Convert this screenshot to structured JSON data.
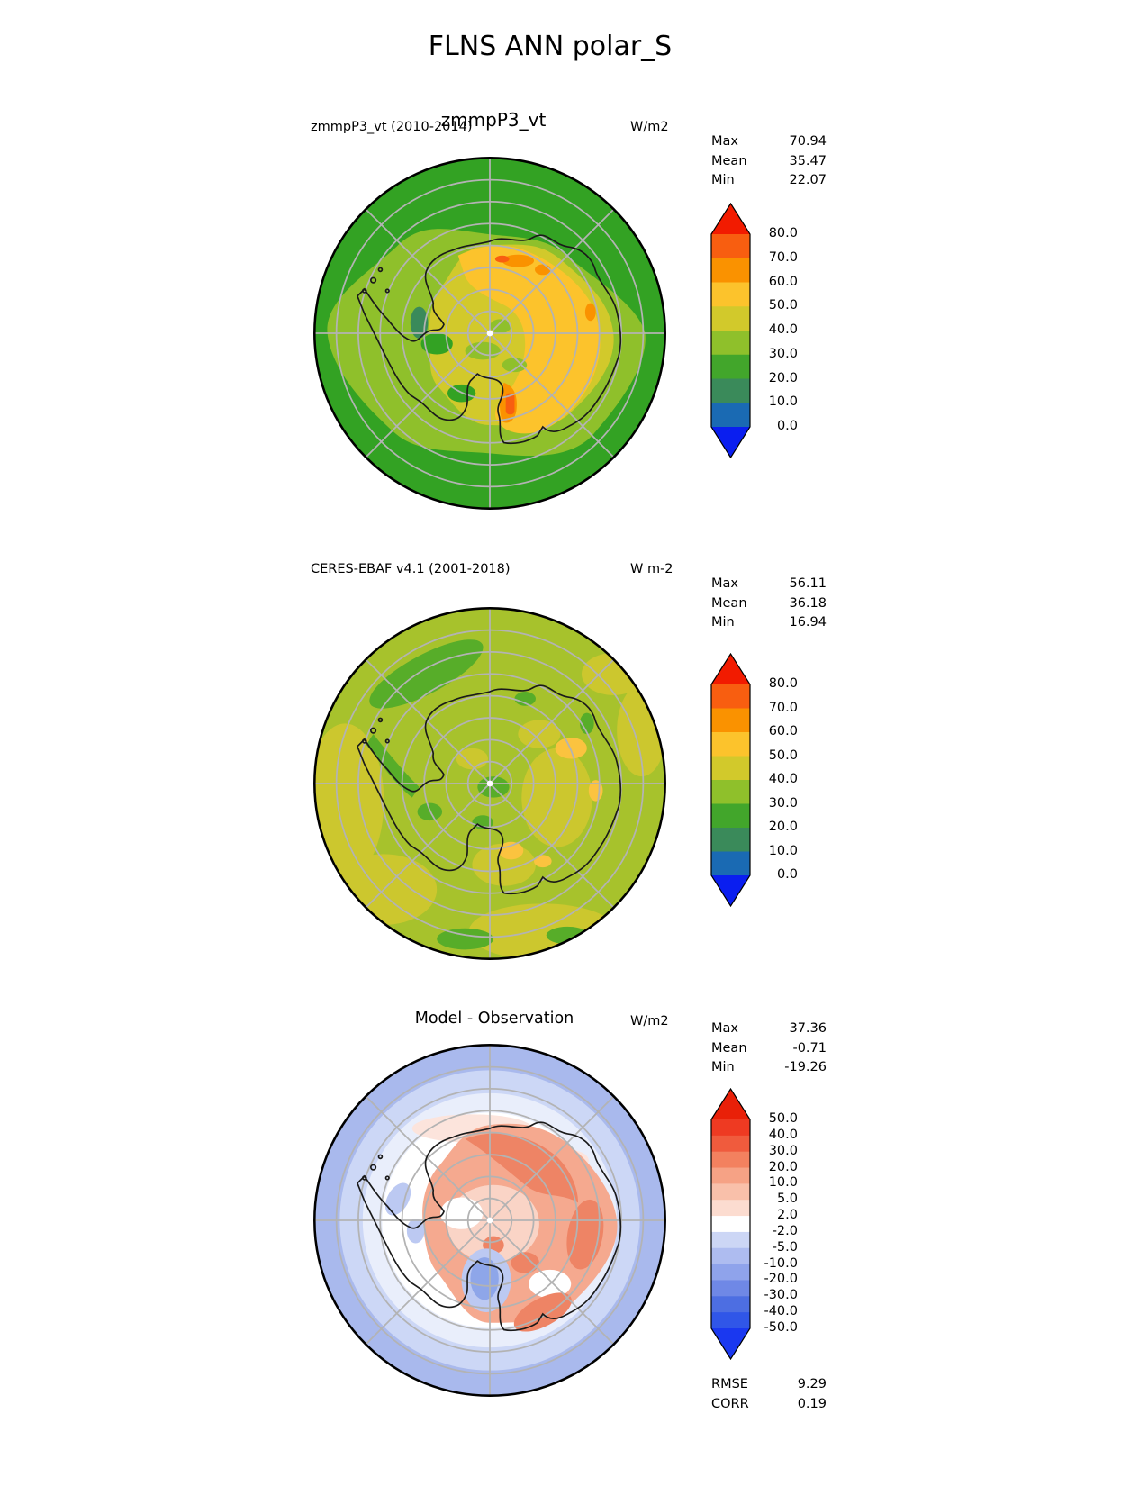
{
  "page_title": "FLNS ANN polar_S",
  "panels": [
    {
      "title_small": "zmmpP3_vt (2010-2014)",
      "title_large": "zmmpP3_vt",
      "units": "W/m2",
      "stats": [
        {
          "label": "Max",
          "value": "70.94"
        },
        {
          "label": "Mean",
          "value": "35.47"
        },
        {
          "label": "Min",
          "value": "22.07"
        }
      ],
      "colorbar": {
        "ticks": [
          "80.0",
          "70.0",
          "60.0",
          "50.0",
          "40.0",
          "30.0",
          "20.0",
          "10.0",
          "0.0"
        ],
        "segments_top_to_bottom": [
          "#f21b00",
          "#f85e10",
          "#fa9200",
          "#fcc32c",
          "#d2c92b",
          "#8fc02b",
          "#42a62b",
          "#3a8a5a",
          "#1a6ab3",
          "#0a1ef0"
        ]
      }
    },
    {
      "title_small": "CERES-EBAF v4.1 (2001-2018)",
      "title_large": "",
      "units": "W m-2",
      "stats": [
        {
          "label": "Max",
          "value": "56.11"
        },
        {
          "label": "Mean",
          "value": "36.18"
        },
        {
          "label": "Min",
          "value": "16.94"
        }
      ],
      "colorbar": {
        "ticks": [
          "80.0",
          "70.0",
          "60.0",
          "50.0",
          "40.0",
          "30.0",
          "20.0",
          "10.0",
          "0.0"
        ],
        "segments_top_to_bottom": [
          "#f21b00",
          "#f85e10",
          "#fa9200",
          "#fcc32c",
          "#d2c92b",
          "#8fc02b",
          "#42a62b",
          "#3a8a5a",
          "#1a6ab3",
          "#0a1ef0"
        ]
      }
    },
    {
      "title_small": "",
      "title_large": "Model - Observation",
      "units": "W/m2",
      "stats": [
        {
          "label": "Max",
          "value": "37.36"
        },
        {
          "label": "Mean",
          "value": "-0.71"
        },
        {
          "label": "Min",
          "value": "-19.26"
        }
      ],
      "colorbar": {
        "ticks": [
          "50.0",
          "40.0",
          "30.0",
          "20.0",
          "10.0",
          "5.0",
          "2.0",
          "-2.0",
          "-5.0",
          "-10.0",
          "-20.0",
          "-30.0",
          "-40.0",
          "-50.0"
        ],
        "segments_top_to_bottom": [
          "#e92008",
          "#ee3a22",
          "#f05b3d",
          "#f3815f",
          "#f6a285",
          "#f9c0aa",
          "#fcdcd0",
          "#ffffff",
          "#ccd6f5",
          "#aebcf0",
          "#8fa3eb",
          "#6f88e6",
          "#4d6ee2",
          "#3056e8",
          "#1a38f0"
        ]
      }
    }
  ],
  "footer": {
    "rows": [
      {
        "label": "RMSE",
        "value": "9.29"
      },
      {
        "label": "CORR",
        "value": "0.19"
      }
    ]
  },
  "palette": {
    "graticule": "#b3b3b3",
    "coast": "#1a1a1a",
    "p1": {
      "ocean": "#33a223",
      "ring": "#8fc02b",
      "olive": "#d2c92b",
      "amber": "#fcc32c",
      "orange": "#fa9200",
      "orange_red": "#f85e10",
      "teal": "#3a8a5a"
    },
    "p2": {
      "base": "#a7c22c",
      "olive": "#ccc72e",
      "green": "#57ad29",
      "amber": "#fbc33f"
    },
    "p3": {
      "ring1": "#a9b9ed",
      "ring2": "#ccd7f6",
      "ring3": "#e9eefb",
      "white": "#ffffff",
      "salmon": "#f5a98f",
      "pink_light": "#fad4c6",
      "pink_faint": "#fce4dc",
      "red": "#ee8465",
      "blue": "#8ea6e9",
      "blue_light": "#bcc9f2"
    }
  },
  "chart_data": [
    {
      "type": "heatmap",
      "subtype": "south_polar_stereographic_map",
      "variable": "FLNS",
      "season": "ANN",
      "region": "polar_S",
      "title": "zmmpP3_vt",
      "subtitle": "zmmpP3_vt (2010-2014)",
      "units": "W/m2",
      "stats": {
        "max": 70.94,
        "mean": 35.47,
        "min": 22.07
      },
      "colorbar_levels": [
        0,
        10,
        20,
        30,
        40,
        50,
        60,
        70,
        80
      ],
      "colorbar_colors_low_to_high": [
        "#0a1ef0",
        "#1a6ab3",
        "#3a8a5a",
        "#42a62b",
        "#8fc02b",
        "#d2c92b",
        "#fcc32c",
        "#fa9200",
        "#f85e10",
        "#f21b00"
      ],
      "extend": "both",
      "graticule": {
        "latitude_circles": 7,
        "meridian_spokes_deg": 45
      },
      "legend_position": "right"
    },
    {
      "type": "heatmap",
      "subtype": "south_polar_stereographic_map",
      "variable": "FLNS",
      "season": "ANN",
      "region": "polar_S",
      "title": "CERES-EBAF v4.1 (2001-2018)",
      "units": "W m-2",
      "stats": {
        "max": 56.11,
        "mean": 36.18,
        "min": 16.94
      },
      "colorbar_levels": [
        0,
        10,
        20,
        30,
        40,
        50,
        60,
        70,
        80
      ],
      "colorbar_colors_low_to_high": [
        "#0a1ef0",
        "#1a6ab3",
        "#3a8a5a",
        "#42a62b",
        "#8fc02b",
        "#d2c92b",
        "#fcc32c",
        "#fa9200",
        "#f85e10",
        "#f21b00"
      ],
      "extend": "both",
      "graticule": {
        "latitude_circles": 7,
        "meridian_spokes_deg": 45
      },
      "legend_position": "right"
    },
    {
      "type": "heatmap",
      "subtype": "south_polar_stereographic_map",
      "variable": "FLNS difference",
      "season": "ANN",
      "region": "polar_S",
      "title": "Model - Observation",
      "units": "W/m2",
      "stats": {
        "max": 37.36,
        "mean": -0.71,
        "min": -19.26
      },
      "rmse": 9.29,
      "corr": 0.19,
      "colorbar_levels": [
        -50,
        -40,
        -30,
        -20,
        -10,
        -5,
        -2,
        2,
        5,
        10,
        20,
        30,
        40,
        50
      ],
      "colorbar_colors_low_to_high": [
        "#1a38f0",
        "#3056e8",
        "#4d6ee2",
        "#6f88e6",
        "#8fa3eb",
        "#aebcf0",
        "#ccd6f5",
        "#ffffff",
        "#fcdcd0",
        "#f9c0aa",
        "#f6a285",
        "#f3815f",
        "#f05b3d",
        "#ee3a22",
        "#e92008"
      ],
      "extend": "both",
      "graticule": {
        "latitude_circles": 7,
        "meridian_spokes_deg": 45
      },
      "legend_position": "right"
    }
  ]
}
